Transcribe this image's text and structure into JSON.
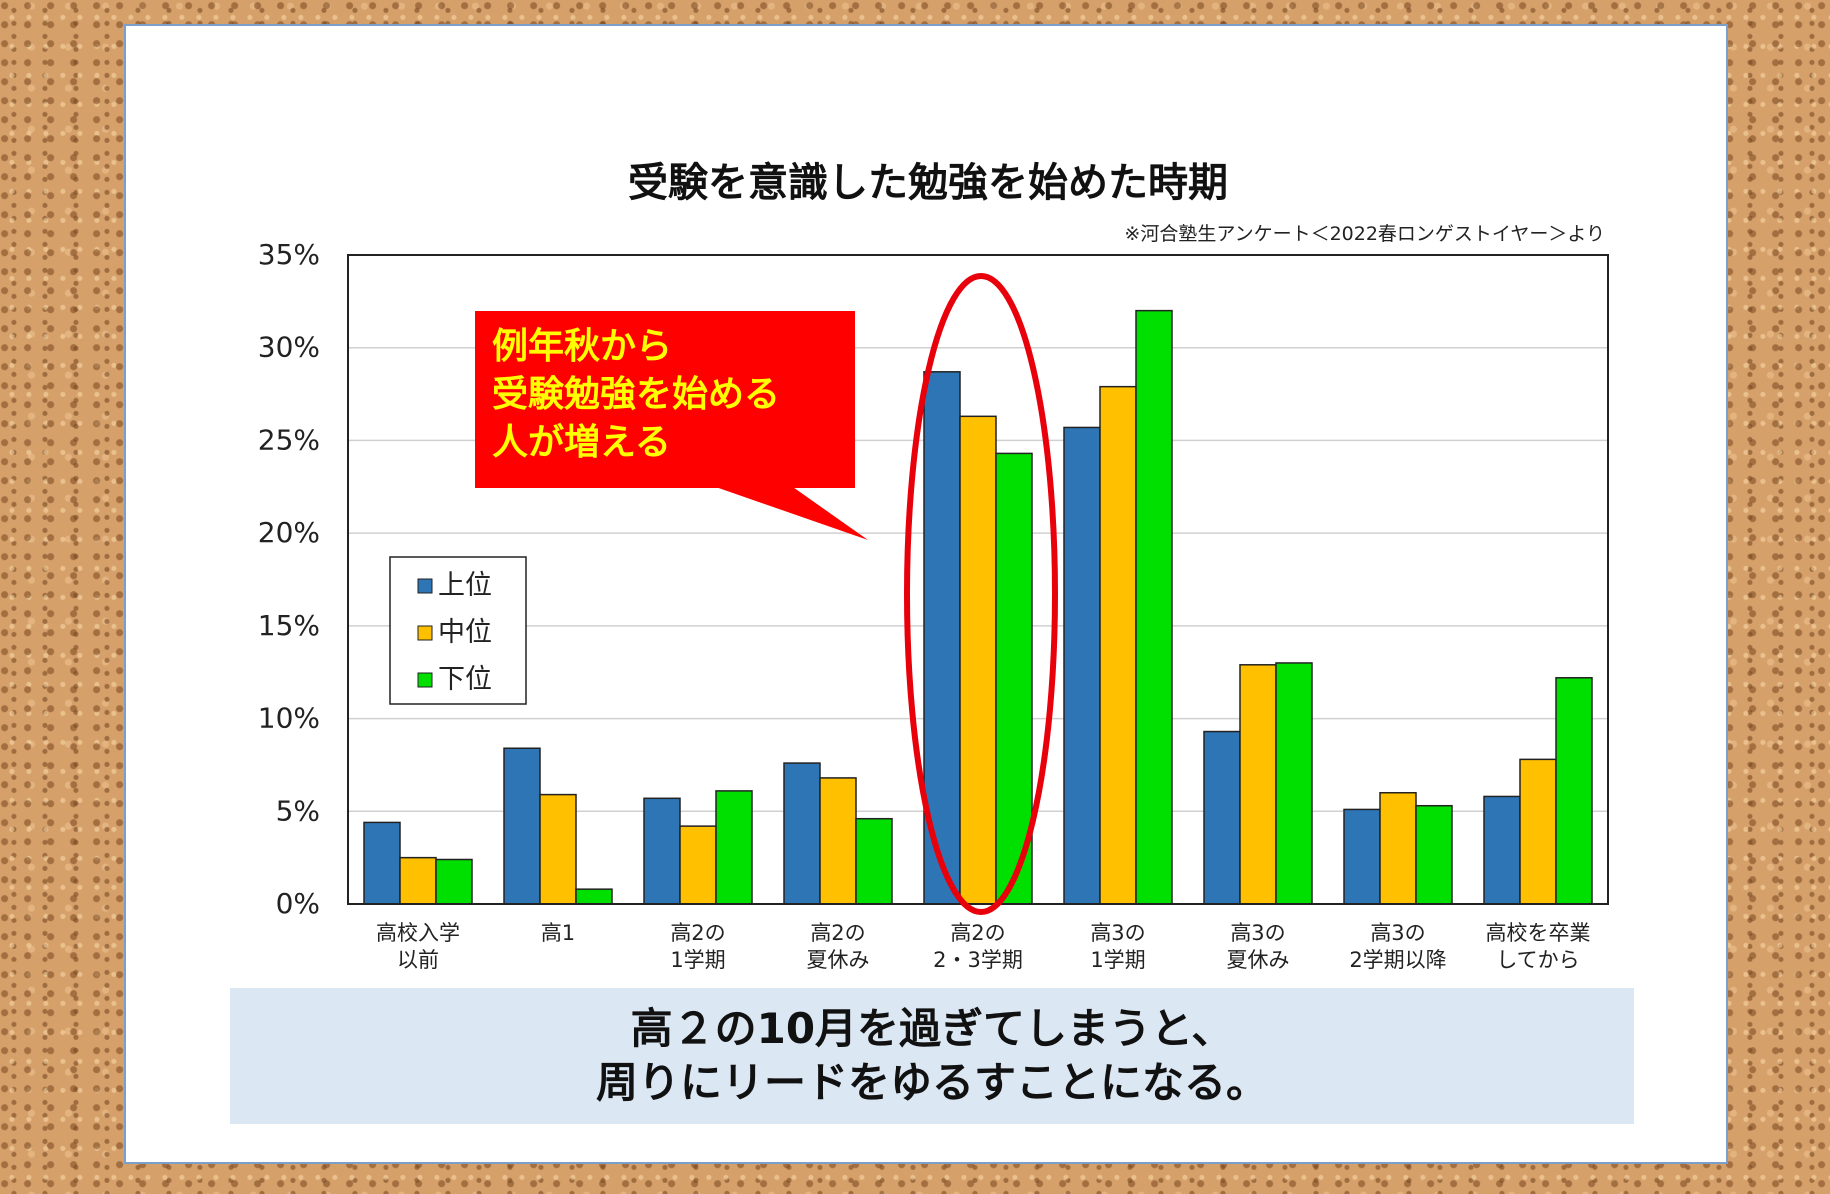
{
  "chart_data": {
    "type": "bar",
    "title": "受験を意識した勉強を始めた時期",
    "source_note": "※河合塾生アンケート＜2022春ロンゲストイヤー＞より",
    "categories": [
      [
        "高校入学",
        "以前"
      ],
      [
        "高1"
      ],
      [
        "高2の",
        "1学期"
      ],
      [
        "高2の",
        "夏休み"
      ],
      [
        "高2の",
        "2・3学期"
      ],
      [
        "高3の",
        "1学期"
      ],
      [
        "高3の",
        "夏休み"
      ],
      [
        "高3の",
        "2学期以降"
      ],
      [
        "高校を卒業",
        "してから"
      ]
    ],
    "series": [
      {
        "name": "上位",
        "color": "#2e75b6",
        "values": [
          4.4,
          8.4,
          5.7,
          7.6,
          28.7,
          25.7,
          9.3,
          5.1,
          5.8
        ]
      },
      {
        "name": "中位",
        "color": "#ffc000",
        "values": [
          2.5,
          5.9,
          4.2,
          6.8,
          26.3,
          27.9,
          12.9,
          6.0,
          7.8
        ]
      },
      {
        "name": "下位",
        "color": "#00e000",
        "values": [
          2.4,
          0.8,
          6.1,
          4.6,
          24.3,
          32.0,
          13.0,
          5.3,
          12.2
        ]
      }
    ],
    "ylim": [
      0,
      35
    ],
    "yticks": [
      "0%",
      "5%",
      "10%",
      "15%",
      "20%",
      "25%",
      "30%",
      "35%"
    ],
    "grid": true,
    "legend_position": "left",
    "highlight_category_index": 4,
    "callout_lines": [
      "例年秋から",
      "受験勉強を始める",
      "人が増える"
    ]
  },
  "footer": {
    "line1": "高２の10月を過ぎてしまうと、",
    "line2": "周りにリードをゆるすことになる。"
  },
  "colors": {
    "callout_bg": "#ff0000",
    "callout_text": "#ffff00",
    "highlight_ellipse": "#e8000b"
  }
}
